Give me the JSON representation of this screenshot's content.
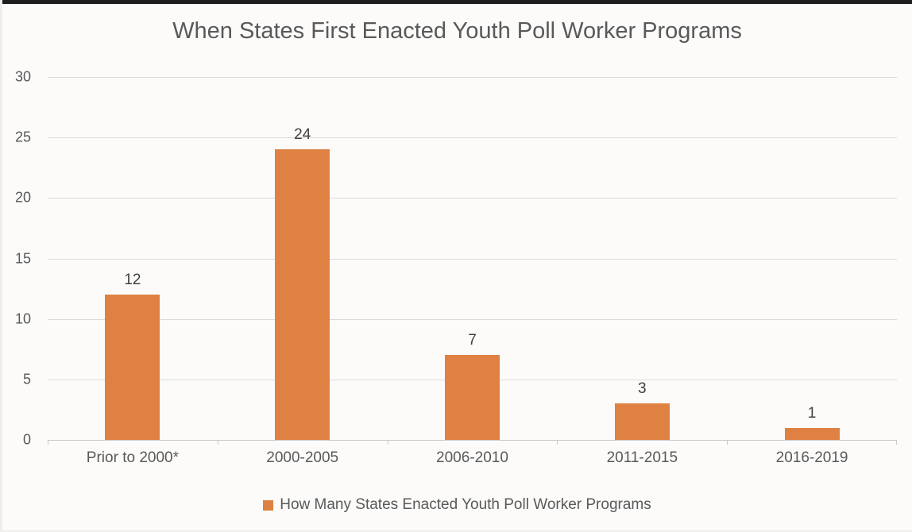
{
  "chart_data": {
    "type": "bar",
    "title": "When States First Enacted Youth Poll Worker Programs",
    "categories": [
      "Prior to 2000*",
      "2000-2005",
      "2006-2010",
      "2011-2015",
      "2016-2019"
    ],
    "values": [
      12,
      24,
      7,
      3,
      1
    ],
    "value_labels": [
      "12",
      "24",
      "7",
      "3",
      "1"
    ],
    "yticks": [
      0,
      5,
      10,
      15,
      20,
      25,
      30
    ],
    "ylim": [
      0,
      30
    ],
    "xlabel": "",
    "ylabel": "",
    "grid": true,
    "legend_position": "bottom",
    "legend_label": "How Many States Enacted Youth Poll Worker Programs"
  },
  "colors": {
    "bar": "#de8142",
    "gridline": "#dbdbdb",
    "axis_line": "#c9c9c9",
    "tick_text": "#595959",
    "title_text": "#595959",
    "value_label_text": "#404040",
    "x_label_text": "#595959",
    "legend_text": "#595959",
    "top_strip": "#1e1e1e",
    "background": "#fcfbfa"
  }
}
